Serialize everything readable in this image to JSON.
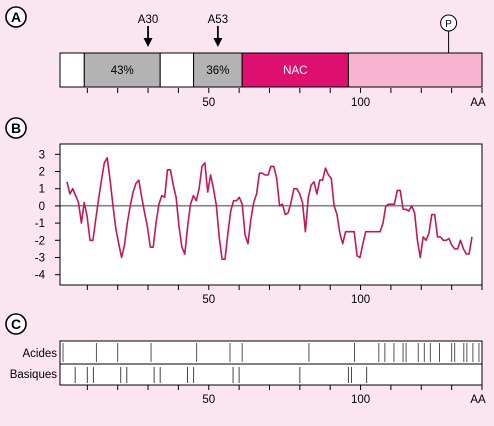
{
  "colors": {
    "background": "#fbe5f1",
    "panel": "#ffffff",
    "frame": "#000000",
    "seg_gray": "#b3b3b3",
    "seg_nac": "#dd0f6f",
    "seg_pink": "#f6b4d0",
    "curve": "#c2185b",
    "marks_acid": "#555555",
    "marks_basic": "#444444"
  },
  "panel_a": {
    "badge": "A",
    "markers": [
      "A30",
      "A53"
    ],
    "phospho": "P",
    "segments": [
      {
        "label": "",
        "from": 1,
        "to": 9,
        "color": "white"
      },
      {
        "label": "43%",
        "from": 9,
        "to": 34,
        "color": "gray"
      },
      {
        "label": "",
        "from": 34,
        "to": 45,
        "color": "white"
      },
      {
        "label": "36%",
        "from": 45,
        "to": 61,
        "color": "gray"
      },
      {
        "label": "NAC",
        "from": 61,
        "to": 96,
        "color": "nac"
      },
      {
        "label": "",
        "from": 96,
        "to": 140,
        "color": "pink"
      }
    ],
    "marker_positions": [
      30,
      53
    ],
    "phospho_position": 129,
    "axis_ticks": [
      "50",
      "100"
    ],
    "axis_unit": "AA"
  },
  "panel_b": {
    "badge": "B",
    "y_ticks": [
      "3",
      "2",
      "1",
      "0",
      "-1",
      "-2",
      "-3",
      "-4"
    ],
    "x_ticks": [
      "50",
      "100"
    ],
    "ylim": [
      -4.6,
      3.6
    ],
    "xlim": [
      0,
      142
    ],
    "profile": [
      1.4,
      0.7,
      1.0,
      0.6,
      0.2,
      -1.0,
      0.2,
      -0.6,
      -2.0,
      -2.0,
      -0.8,
      0.4,
      1.5,
      2.5,
      2.8,
      1.5,
      0.0,
      -1.3,
      -2.2,
      -3.0,
      -2.3,
      -1.0,
      0.0,
      0.8,
      1.3,
      1.5,
      0.5,
      -0.4,
      -1.2,
      -2.4,
      -2.4,
      -1.0,
      0.1,
      0.6,
      0.5,
      2.1,
      2.1,
      1.2,
      0.5,
      -1.2,
      -2.4,
      -2.8,
      -1.2,
      0.1,
      0.6,
      0.3,
      1.0,
      2.3,
      2.5,
      0.8,
      1.8,
      1.0,
      0.0,
      -1.8,
      -3.1,
      -3.1,
      -1.6,
      -0.3,
      0.3,
      0.3,
      0.5,
      0.1,
      -1.7,
      -2.2,
      -0.8,
      0.2,
      0.7,
      1.9,
      1.9,
      1.8,
      1.8,
      2.3,
      2.3,
      1.6,
      0.0,
      0.1,
      -0.5,
      -0.4,
      0.2,
      1.0,
      1.0,
      0.7,
      0.2,
      -1.5,
      0.5,
      1.2,
      1.4,
      0.7,
      1.5,
      1.5,
      2.2,
      1.8,
      1.6,
      0.0,
      -0.5,
      -1.6,
      -2.2,
      -1.5,
      -1.5,
      -1.5,
      -1.5,
      -2.9,
      -3.0,
      -2.2,
      -1.5,
      -1.5,
      -1.5,
      -1.5,
      -1.5,
      -1.5,
      -1.0,
      0.0,
      0.1,
      0.1,
      0.1,
      0.9,
      0.9,
      -0.2,
      -0.2,
      -0.3,
      0.0,
      -0.4,
      -2.0,
      -3.0,
      -1.8,
      -2.0,
      -1.6,
      -0.5,
      -0.5,
      -1.8,
      -1.8,
      -2.0,
      -2.0,
      -1.9,
      -2.3,
      -2.5,
      -2.5,
      -2.0,
      -2.5,
      -2.8,
      -2.8,
      -1.8
    ]
  },
  "panel_c": {
    "badge": "C",
    "row_labels": [
      "Acides",
      "Basiques"
    ],
    "acid_positions": [
      2,
      13,
      20,
      31,
      46,
      57,
      61,
      83,
      98,
      106,
      108,
      111,
      114,
      115,
      119,
      121,
      123,
      126,
      130,
      131,
      134,
      135,
      137,
      139
    ],
    "basic_positions": [
      6,
      10,
      12,
      21,
      23,
      32,
      34,
      43,
      45,
      58,
      60,
      80,
      96,
      97,
      102
    ],
    "x_ticks": [
      "50",
      "100"
    ],
    "axis_unit": "AA"
  }
}
